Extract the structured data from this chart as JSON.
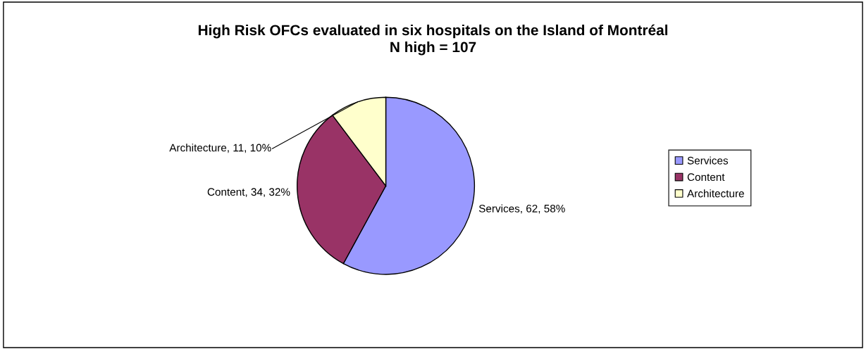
{
  "chart_data": {
    "type": "pie",
    "title": "High Risk OFCs evaluated in six hospitals on the Island of Montréal\nN high = 107",
    "categories": [
      "Services",
      "Content",
      "Architecture"
    ],
    "values": [
      62,
      34,
      11
    ],
    "colors": [
      "#9999ff",
      "#993366",
      "#ffffcc"
    ],
    "value_labels": [
      "Services, 62, 58%",
      "Content, 34, 32%",
      "Architecture, 11, 10%"
    ],
    "legend": "right"
  }
}
